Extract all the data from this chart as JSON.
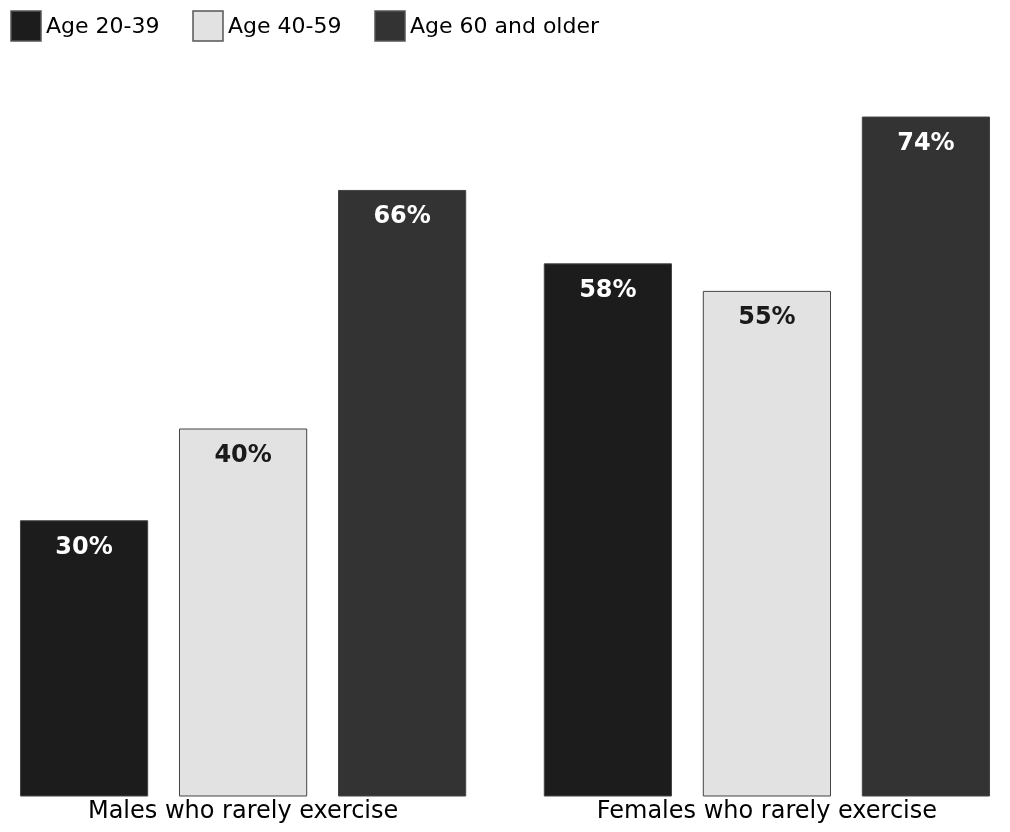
{
  "chart_data": {
    "type": "bar",
    "categories": [
      "Males who rarely exercise",
      "Females who rarely exercise"
    ],
    "series": [
      {
        "name": "Age 20-39",
        "color": "#1c1c1c",
        "values": [
          30,
          58
        ],
        "value_labels": [
          "30%",
          "58%"
        ]
      },
      {
        "name": "Age 40-59",
        "color": "#e2e2e2",
        "values": [
          40,
          55
        ],
        "value_labels": [
          "40%",
          "55%"
        ]
      },
      {
        "name": "Age 60 and older",
        "color": "#333333",
        "values": [
          66,
          74
        ],
        "value_labels": [
          "66%",
          "74%"
        ]
      }
    ],
    "legend": "top left",
    "grid": false
  }
}
